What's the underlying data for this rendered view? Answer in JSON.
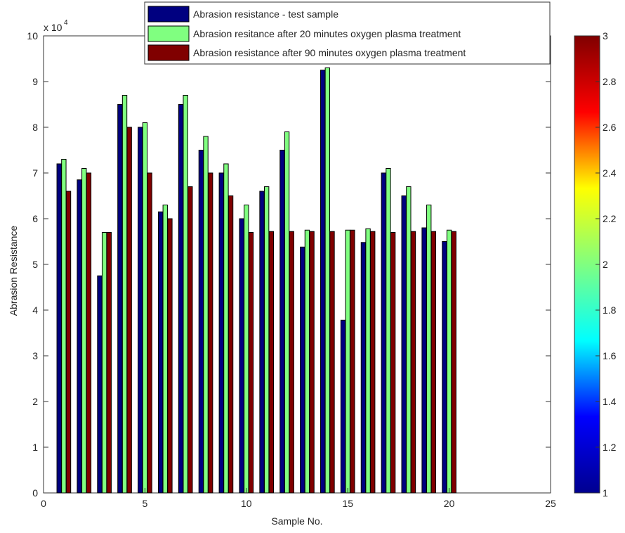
{
  "chart_data": {
    "type": "bar",
    "x": [
      1,
      2,
      3,
      4,
      5,
      6,
      7,
      8,
      9,
      10,
      11,
      12,
      13,
      14,
      15,
      16,
      17,
      18,
      19,
      20
    ],
    "series": [
      {
        "name": "Abrasion resistance - test sample",
        "color": "#000080",
        "values": [
          7.2,
          6.85,
          4.75,
          8.5,
          8.0,
          6.15,
          8.5,
          7.5,
          7.0,
          6.0,
          6.6,
          7.5,
          5.38,
          9.25,
          3.78,
          5.48,
          7.0,
          6.5,
          5.8,
          5.5
        ]
      },
      {
        "name": "Abrasion resitance after 20 minutes oxygen plasma treatment",
        "color": "#80ff80",
        "values": [
          7.3,
          7.1,
          5.7,
          8.7,
          8.1,
          6.3,
          8.7,
          7.8,
          7.2,
          6.3,
          6.7,
          7.9,
          5.75,
          9.3,
          5.75,
          5.78,
          7.1,
          6.7,
          6.3,
          5.75
        ]
      },
      {
        "name": "Abrasion resistance after 90 minutes oxygen plasma treatment",
        "color": "#800000",
        "values": [
          6.6,
          7.0,
          5.7,
          8.0,
          7.0,
          6.0,
          6.7,
          7.0,
          6.5,
          5.7,
          5.72,
          5.72,
          5.72,
          5.72,
          5.75,
          5.72,
          5.7,
          5.72,
          5.72,
          5.72
        ]
      }
    ],
    "xlabel": "Sample No.",
    "ylabel": "Abrasion Resistance",
    "y_multiplier_label": "x 10",
    "y_multiplier_exponent": "4",
    "xlim": [
      0,
      25
    ],
    "ylim": [
      0,
      10
    ],
    "xticks": [
      0,
      5,
      10,
      15,
      20,
      25
    ],
    "xtick_labels": [
      "0",
      "5",
      "10",
      "15",
      "20",
      "25"
    ],
    "yticks": [
      0,
      1,
      2,
      3,
      4,
      5,
      6,
      7,
      8,
      9,
      10
    ],
    "ytick_labels": [
      "0",
      "1",
      "2",
      "3",
      "4",
      "5",
      "6",
      "7",
      "8",
      "9",
      "10"
    ],
    "grid": false,
    "legend_position": "top-center",
    "colorbar": {
      "range": [
        1,
        3
      ],
      "ticks": [
        1,
        1.2,
        1.4,
        1.6,
        1.8,
        2,
        2.2,
        2.4,
        2.6,
        2.8,
        3
      ],
      "tick_labels": [
        "1",
        "1.2",
        "1.4",
        "1.6",
        "1.8",
        "2",
        "2.2",
        "2.4",
        "2.6",
        "2.8",
        "3"
      ],
      "colormap": "jet",
      "colormap_stops": [
        "#00008f",
        "#0000ff",
        "#00ffff",
        "#80ff80",
        "#ffff00",
        "#ff0000",
        "#800000"
      ]
    }
  }
}
